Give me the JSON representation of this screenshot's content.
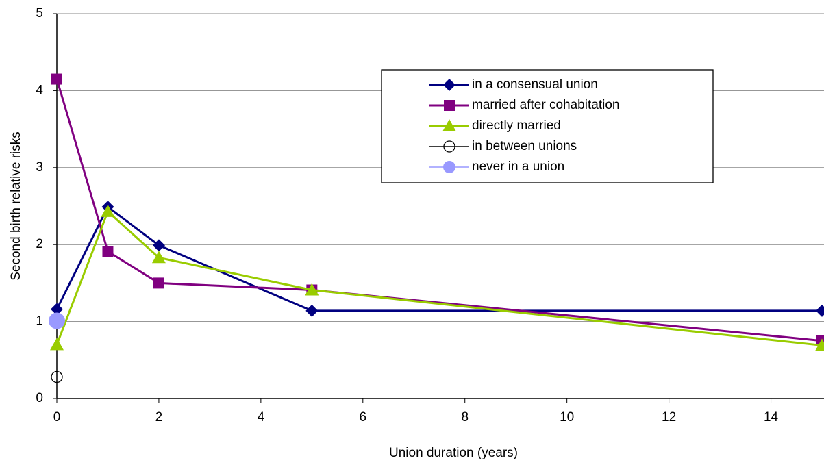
{
  "chart_data": {
    "type": "line",
    "xlabel": "Union duration (years)",
    "ylabel": "Second birth relative risks",
    "xlim": [
      0,
      15
    ],
    "xticks": [
      0,
      2,
      4,
      6,
      8,
      10,
      12,
      14
    ],
    "ylim": [
      0,
      5
    ],
    "yticks": [
      0,
      1,
      2,
      3,
      4,
      5
    ],
    "grid": true,
    "legend": "upper right",
    "series": [
      {
        "name": "in a consensual union",
        "color": "#000080",
        "marker": "diamond",
        "x": [
          0,
          1,
          2,
          5,
          15
        ],
        "values": [
          1.16,
          2.49,
          1.99,
          1.14,
          1.14
        ]
      },
      {
        "name": "married after cohabitation",
        "color": "#800080",
        "marker": "square",
        "x": [
          0,
          1,
          2,
          5,
          15
        ],
        "values": [
          4.15,
          1.91,
          1.5,
          1.41,
          0.75
        ]
      },
      {
        "name": "directly married",
        "color": "#99cc00",
        "marker": "triangle",
        "x": [
          0,
          1,
          2,
          5,
          15
        ],
        "values": [
          0.7,
          2.43,
          1.83,
          1.41,
          0.69
        ]
      },
      {
        "name": "in between unions",
        "color": "#000000",
        "marker": "open-circle",
        "x": [
          0
        ],
        "values": [
          0.28
        ]
      },
      {
        "name": "never in a union",
        "color": "#9999ff",
        "marker": "circle",
        "x": [
          0
        ],
        "values": [
          1.01
        ]
      }
    ]
  }
}
